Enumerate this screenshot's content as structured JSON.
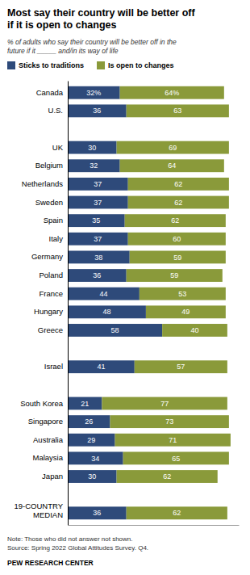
{
  "chart_data": {
    "type": "bar",
    "orientation": "horizontal",
    "stacked": true,
    "data_labels": true,
    "tick_labels": "y",
    "title": "Most say their country will be better off\nif it is open to changes",
    "subtitle": "% of adults who say their country will be better off in the\nfuture if it _____  and/in its way of life",
    "note": "Note: Those who did not answer not shown.\nSource: Spring 2022 Global Attitudes Survey. Q4.",
    "source": "PEW RESEARCH CENTER",
    "categories": [
      "Canada",
      "U.S.",
      null,
      "UK",
      "Belgium",
      "Netherlands",
      "Sweden",
      "Spain",
      "Italy",
      "Germany",
      "Poland",
      "France",
      "Hungary",
      "Greece",
      null,
      "Israel",
      null,
      "South Korea",
      "Singapore",
      "Australia",
      "Malaysia",
      "Japan",
      null,
      "19-COUNTRY\nMEDIAN"
    ],
    "xlim": [
      0,
      105
    ],
    "series": [
      {
        "name": "Sticks to traditions",
        "color": "#2E4A7A",
        "values": [
          32,
          36,
          null,
          30,
          32,
          37,
          37,
          35,
          37,
          38,
          36,
          44,
          48,
          58,
          null,
          41,
          null,
          21,
          26,
          29,
          34,
          30,
          null,
          36
        ],
        "value_labels": [
          "32%",
          "36",
          null,
          "30",
          "32",
          "37",
          "37",
          "35",
          "37",
          "38",
          "36",
          "44",
          "48",
          "58",
          null,
          "41",
          null,
          "21",
          "26",
          "29",
          "34",
          "30",
          null,
          "36"
        ]
      },
      {
        "name": "Is open to changes",
        "color": "#8A9A3A",
        "values": [
          64,
          63,
          null,
          69,
          64,
          62,
          62,
          62,
          60,
          59,
          59,
          53,
          49,
          40,
          null,
          57,
          null,
          77,
          73,
          71,
          65,
          62,
          null,
          62
        ],
        "value_labels": [
          "64%",
          "63",
          null,
          "69",
          "64",
          "62",
          "62",
          "62",
          "60",
          "59",
          "59",
          "53",
          "49",
          "40",
          null,
          "57",
          null,
          "77",
          "73",
          "71",
          "65",
          "62",
          null,
          "62"
        ]
      }
    ]
  }
}
